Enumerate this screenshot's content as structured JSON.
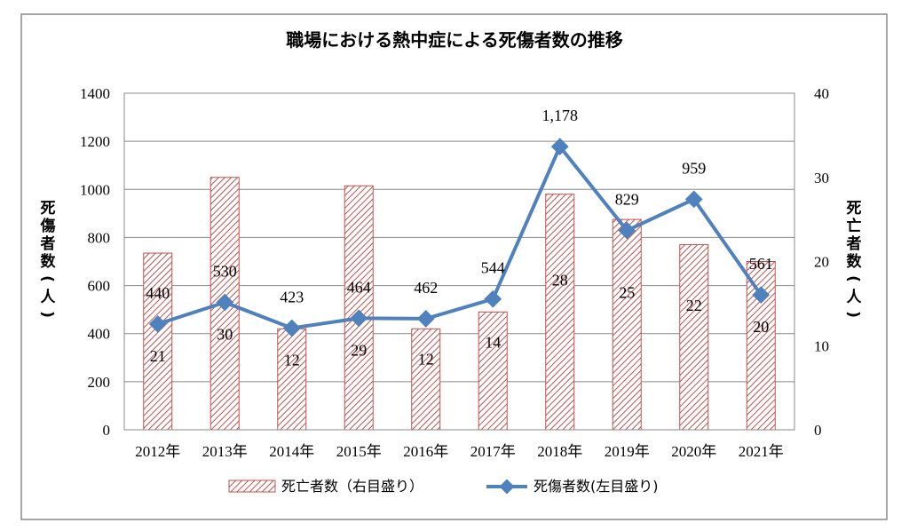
{
  "chart_data": {
    "type": "bar+line",
    "title": "職場における熱中症による死傷者数の推移",
    "categories": [
      "2012年",
      "2013年",
      "2014年",
      "2015年",
      "2016年",
      "2017年",
      "2018年",
      "2019年",
      "2020年",
      "2021年"
    ],
    "series": [
      {
        "name": "死亡者数（右目盛り）",
        "type": "bar",
        "axis": "right",
        "values": [
          21,
          30,
          12,
          29,
          12,
          14,
          28,
          25,
          22,
          20
        ],
        "labels": [
          "21",
          "30",
          "12",
          "29",
          "12",
          "14",
          "28",
          "25",
          "22",
          "20"
        ],
        "color": "#c0504d"
      },
      {
        "name": "死傷者数(左目盛り)",
        "type": "line",
        "axis": "left",
        "values": [
          440,
          530,
          423,
          464,
          462,
          544,
          1178,
          829,
          959,
          561
        ],
        "labels": [
          "440",
          "530",
          "423",
          "464",
          "462",
          "544",
          "1,178",
          "829",
          "959",
          "561"
        ],
        "color": "#4f81bd"
      }
    ],
    "left_axis": {
      "label": "死傷者数(人)",
      "label_chars": [
        "死",
        "傷",
        "者",
        "数",
        "(",
        "人",
        ")"
      ],
      "range": [
        0,
        1400
      ],
      "ticks": [
        "0",
        "200",
        "400",
        "600",
        "800",
        "1000",
        "1200",
        "1400"
      ]
    },
    "right_axis": {
      "label": "死亡者数(人)",
      "label_chars": [
        "死",
        "亡",
        "者",
        "数",
        "(",
        "人",
        ")"
      ],
      "range": [
        0,
        40
      ],
      "ticks": [
        "0",
        "10",
        "20",
        "30",
        "40"
      ]
    },
    "grid": true,
    "legend_position": "bottom",
    "legend_labels": {
      "bar": "死亡者数（右目盛り）",
      "line": "死傷者数(左目盛り)"
    }
  }
}
